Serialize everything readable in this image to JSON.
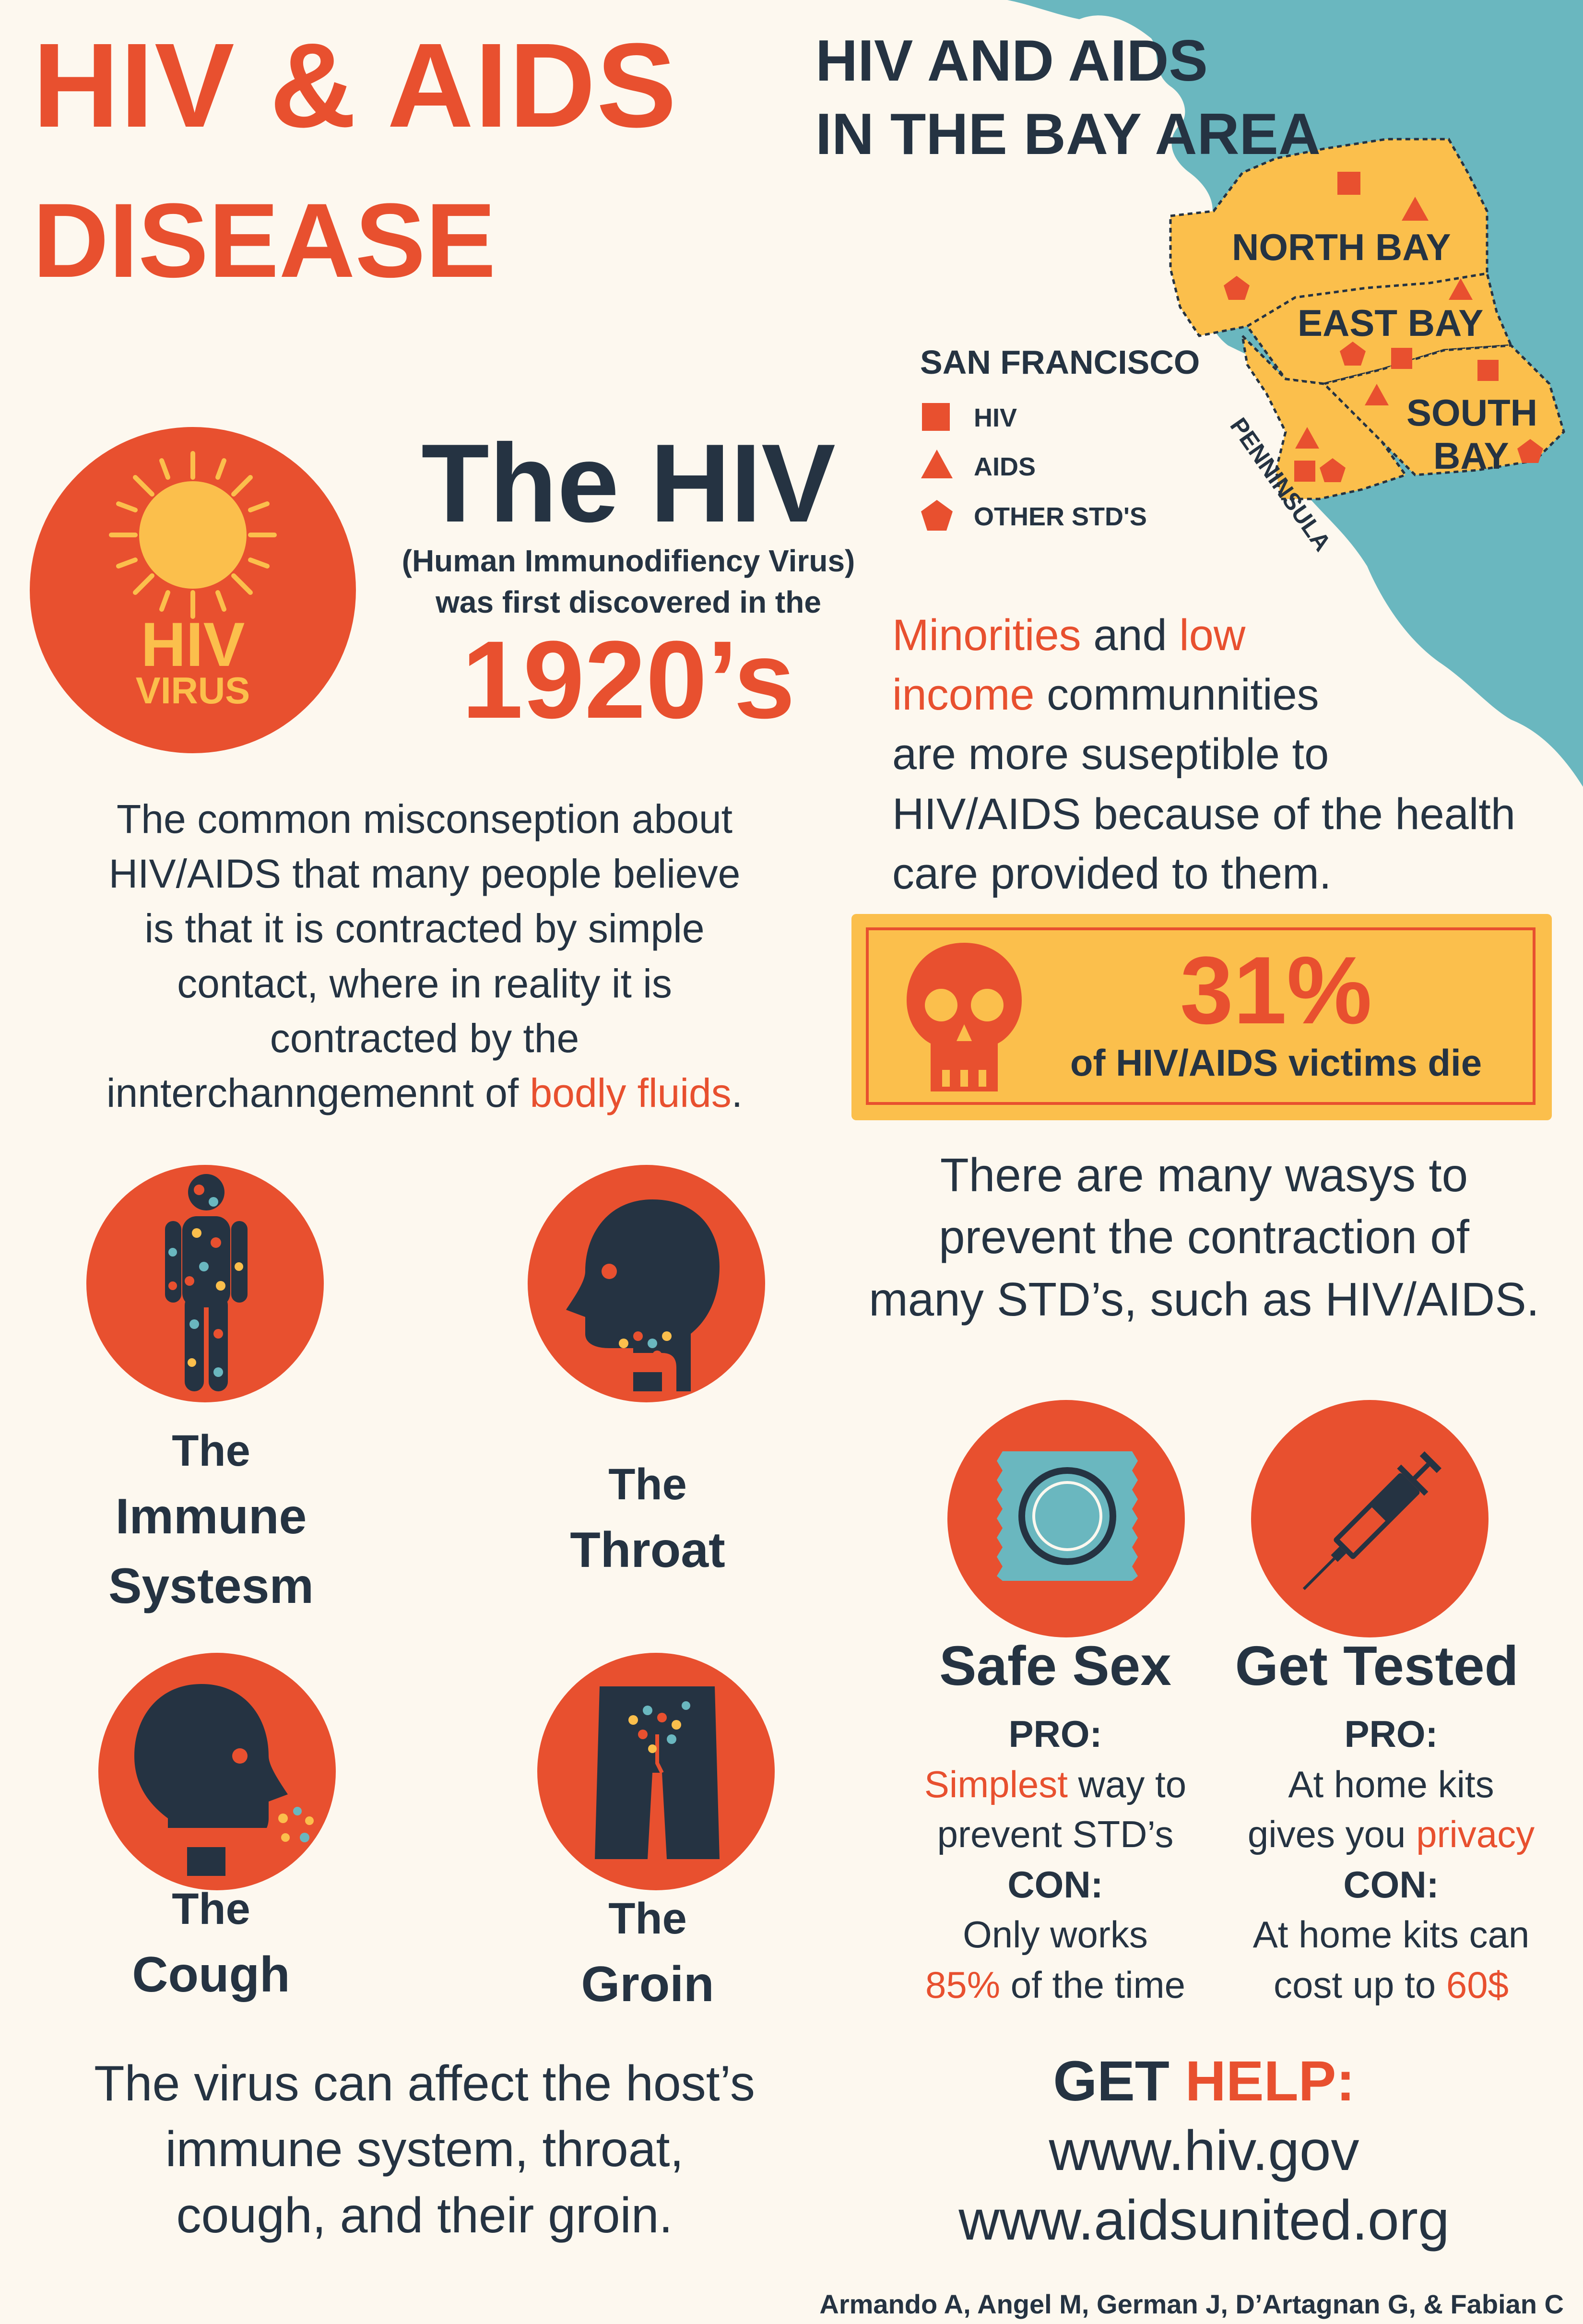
{
  "header": {
    "title_line1": "HIV & AIDS",
    "title_line2": "DISEASE",
    "map_title_line1": "HIV AND AIDS",
    "map_title_line2": "IN THE BAY AREA"
  },
  "map": {
    "regions": [
      "NORTH BAY",
      "EAST BAY",
      "SAN FRANCISCO",
      "PENNINSULA",
      "SOUTH",
      "BAY"
    ],
    "legend": [
      {
        "icon": "square-icon",
        "label": "HIV"
      },
      {
        "icon": "triangle-icon",
        "label": "AIDS"
      },
      {
        "icon": "pentagon-icon",
        "label": "OTHER STD'S"
      }
    ],
    "colors": {
      "ocean": "#6ab7bf",
      "land": "#fbbf4c",
      "marker": "#e8502f"
    }
  },
  "hiv_intro": {
    "badge_line1": "HIV",
    "badge_line2": "VIRUS",
    "heading": "The HIV",
    "subtitle": "(Human Immunodifiency Virus)",
    "discovered": "was first discovered in the",
    "year": "1920’s"
  },
  "minorities": {
    "w1": "Minorities",
    "w2": " and ",
    "w3": "low",
    "w4": "income",
    "w5": " communnities",
    "line3": "are more suseptible to",
    "line4": "HIV/AIDS because of the health",
    "line5": "care provided to them."
  },
  "misconception": {
    "line1": "The common misconseption about",
    "line2": "HIV/AIDS that many people believe",
    "line3": "is that it is contracted by simple",
    "line4": "contact, where in reality it is",
    "line5": "contracted by the",
    "line6a": "innterchanngemennt of ",
    "line6b": "bodly fluids",
    "line6c": "."
  },
  "stat": {
    "value": "31%",
    "label": "of HIV/AIDS victims die"
  },
  "prevent": {
    "line1": "There are many wasys to",
    "line2": "prevent the contraction of",
    "line3": "many STD’s, such as HIV/AIDS."
  },
  "affects": [
    {
      "the": "The",
      "line1": "Immune",
      "line2": "Systesm"
    },
    {
      "the": "The",
      "line1": "Throat"
    },
    {
      "the": "The",
      "line1": "Cough"
    },
    {
      "the": "The",
      "line1": "Groin"
    }
  ],
  "affects_summary": {
    "line1": "The virus can affect the host’s",
    "line2": "immune system, throat,",
    "line3": "cough, and their groin."
  },
  "safe_sex": {
    "title": "Safe Sex",
    "pro": "PRO:",
    "pro_a": "Simplest",
    "pro_b": " way to",
    "pro_c": "prevent STD’s",
    "con": "CON:",
    "con_a": "Only works",
    "con_b": "85%",
    "con_c": " of the time"
  },
  "get_tested": {
    "title": "Get Tested",
    "pro": "PRO:",
    "pro_a": "At home kits",
    "pro_b": "gives you ",
    "pro_c": "privacy",
    "con": "CON:",
    "con_a": "At home kits can",
    "con_b": "cost up to ",
    "con_c": "60$"
  },
  "help": {
    "get": "GET ",
    "help": "HELP:",
    "link1": "www.hiv.gov",
    "link2": "www.aidsunited.org"
  },
  "credits": "Armando A, Angel M, German J, D’Artagnan G, & Fabian C",
  "colors": {
    "orange": "#e8502f",
    "navy": "#253342",
    "yellow": "#fbbf4c",
    "cream": "#fdf8ef",
    "teal": "#6ab7bf"
  }
}
